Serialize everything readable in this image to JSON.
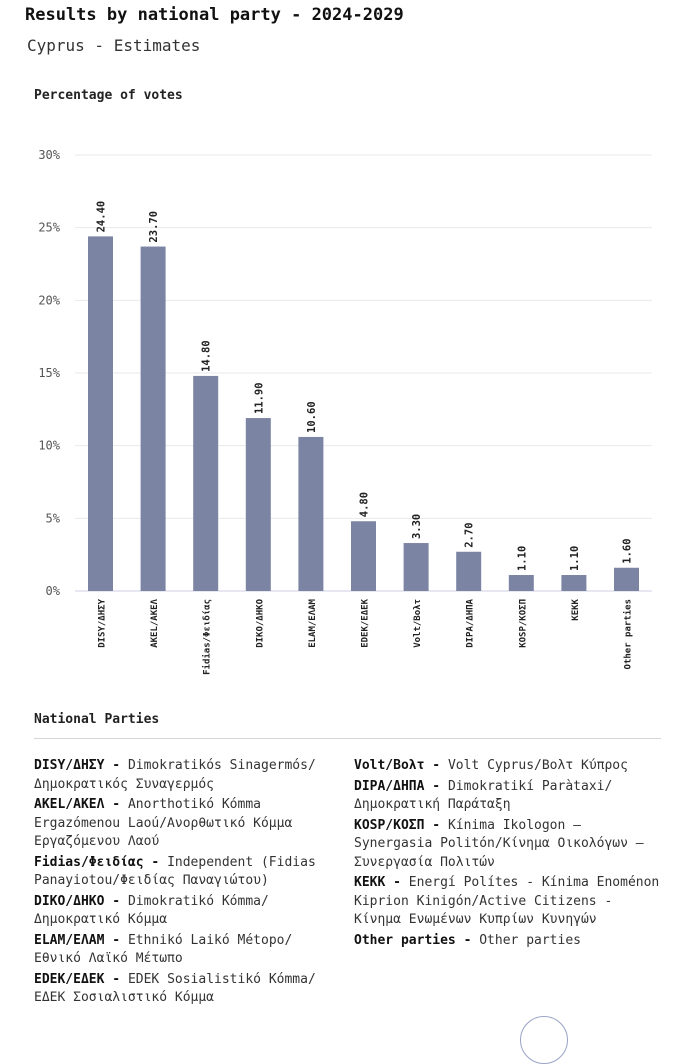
{
  "title": "Results by national party - 2024-2029",
  "subtitle": "Cyprus - Estimates",
  "chart_data": {
    "type": "bar",
    "ylabel": "Percentage of votes",
    "categories": [
      "DISY/ΔΗΣΥ",
      "AKEL/ΑΚΕΛ",
      "Fidias/Φειδίας",
      "DIKO/ΔΗΚΟ",
      "ELAM/ΕΛΑΜ",
      "EDEK/ΕΔΕΚ",
      "Volt/Βολτ",
      "DIPA/ΔΗΠΑ",
      "KOSP/ΚΟΣΠ",
      "KEKK",
      "Other parties"
    ],
    "values": [
      24.4,
      23.7,
      14.8,
      11.9,
      10.6,
      4.8,
      3.3,
      2.7,
      1.1,
      1.1,
      1.6
    ],
    "value_labels": [
      "24.40",
      "23.70",
      "14.80",
      "11.90",
      "10.60",
      "4.80",
      "3.30",
      "2.70",
      "1.10",
      "1.10",
      "1.60"
    ],
    "ylim": [
      0,
      30
    ],
    "yticks": [
      0,
      5,
      10,
      15,
      20,
      25,
      30
    ],
    "ytick_labels": [
      "0%",
      "5%",
      "10%",
      "15%",
      "20%",
      "25%",
      "30%"
    ],
    "grid": true,
    "bar_color": "#7b84a3"
  },
  "legend": {
    "title": "National Parties",
    "separator": "-",
    "left": [
      {
        "code": "DISY/ΔΗΣΥ",
        "desc": "Dimokratikós Sinagermós/ Δημοκρατικός Συναγερμός"
      },
      {
        "code": "AKEL/ΑΚΕΛ",
        "desc": "Anorthotikó Kómma Ergazómenou Laoú/Ανορθωτικό Κόμμα Εργαζόμενου Λαού"
      },
      {
        "code": "Fidias/Φειδίας",
        "desc": "Independent (Fidias Panayiotou/Φειδίας Παναγιώτου)"
      },
      {
        "code": "DIKO/ΔΗΚΟ",
        "desc": "Dimokratikó Kómma/ Δημοκρατικό Κόμμα"
      },
      {
        "code": "ELAM/ΕΛΑΜ",
        "desc": "Ethnikó Laikó Métopo/ Εθνικό Λαϊκό Μέτωπο"
      },
      {
        "code": "EDEK/ΕΔΕΚ",
        "desc": "EDEK Sosialistikó Kómma/ ΕΔΕΚ Σοσιαλιστικό Κόμμα"
      }
    ],
    "right": [
      {
        "code": "Volt/Βολτ",
        "desc": "Volt Cyprus/Βολτ Κύπρος"
      },
      {
        "code": "DIPA/ΔΗΠΑ",
        "desc": "Dimokratikí Paràtaxi/ Δημοκρατική Παράταξη"
      },
      {
        "code": "KOSP/ΚΟΣΠ",
        "desc": "Kínima Ikologon — Synergasia Politón/Κίνημα Οικολόγων — Συνεργασία Πολιτών"
      },
      {
        "code": "KEKK",
        "desc": "Energí Polítes - Kínima Enoménon Kiprion Kinigón/Active Citizens - Κίνημα Ενωμένων Κυπρίων Κυνηγών"
      },
      {
        "code": "Other parties",
        "desc": "Other parties"
      }
    ]
  }
}
